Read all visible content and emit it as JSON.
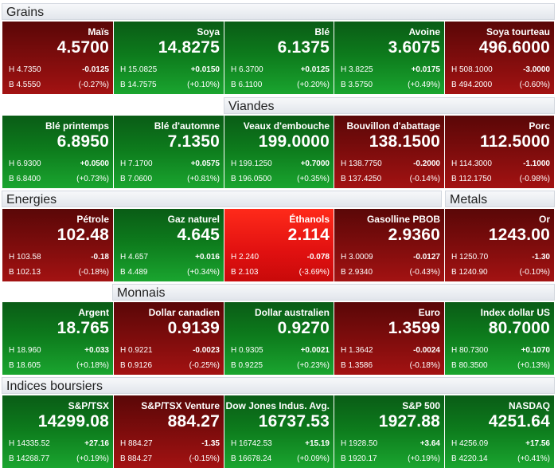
{
  "sections": {
    "grains": "Grains",
    "viandes": "Viandes",
    "energies": "Energies",
    "metals": "Metals",
    "monnais": "Monnais",
    "indices": "Indices boursiers"
  },
  "rows": [
    [
      {
        "name": "Maïs",
        "price": "4.5700",
        "high": "H 4.7350",
        "low": "B 4.5550",
        "change": "-0.0125",
        "pct": "(-0.27%)",
        "dir": "down"
      },
      {
        "name": "Soya",
        "price": "14.8275",
        "high": "H 15.0825",
        "low": "B 14.7575",
        "change": "+0.0150",
        "pct": "(+0.10%)",
        "dir": "up"
      },
      {
        "name": "Blé",
        "price": "6.1375",
        "high": "H 6.3700",
        "low": "B 6.1100",
        "change": "+0.0125",
        "pct": "(+0.20%)",
        "dir": "up"
      },
      {
        "name": "Avoine",
        "price": "3.6075",
        "high": "H 3.8225",
        "low": "B 3.5750",
        "change": "+0.0175",
        "pct": "(+0.49%)",
        "dir": "up"
      },
      {
        "name": "Soya tourteau",
        "price": "496.6000",
        "high": "H 508.1000",
        "low": "B 494.2000",
        "change": "-3.0000",
        "pct": "(-0.60%)",
        "dir": "down"
      }
    ],
    [
      {
        "name": "Blé printemps",
        "price": "6.8950",
        "high": "H 6.9300",
        "low": "B 6.8400",
        "change": "+0.0500",
        "pct": "(+0.73%)",
        "dir": "up"
      },
      {
        "name": "Blé d'automne",
        "price": "7.1350",
        "high": "H 7.1700",
        "low": "B 7.0600",
        "change": "+0.0575",
        "pct": "(+0.81%)",
        "dir": "up"
      },
      {
        "name": "Veaux d'embouche",
        "price": "199.0000",
        "high": "H 199.1250",
        "low": "B 196.0500",
        "change": "+0.7000",
        "pct": "(+0.35%)",
        "dir": "up"
      },
      {
        "name": "Bouvillon d'abattage",
        "price": "138.1500",
        "high": "H 138.7750",
        "low": "B 137.4250",
        "change": "-0.2000",
        "pct": "(-0.14%)",
        "dir": "down"
      },
      {
        "name": "Porc",
        "price": "112.5000",
        "high": "H 114.3000",
        "low": "B 112.1750",
        "change": "-1.1000",
        "pct": "(-0.98%)",
        "dir": "down"
      }
    ],
    [
      {
        "name": "Pétrole",
        "price": "102.48",
        "high": "H 103.58",
        "low": "B 102.13",
        "change": "-0.18",
        "pct": "(-0.18%)",
        "dir": "down"
      },
      {
        "name": "Gaz naturel",
        "price": "4.645",
        "high": "H 4.657",
        "low": "B 4.489",
        "change": "+0.016",
        "pct": "(+0.34%)",
        "dir": "up"
      },
      {
        "name": "Éthanols",
        "price": "2.114",
        "high": "H 2.240",
        "low": "B 2.103",
        "change": "-0.078",
        "pct": "(-3.69%)",
        "dir": "strong-down"
      },
      {
        "name": "Gasolline PBOB",
        "price": "2.9360",
        "high": "H 3.0009",
        "low": "B 2.9340",
        "change": "-0.0127",
        "pct": "(-0.43%)",
        "dir": "down"
      },
      {
        "name": "Or",
        "price": "1243.00",
        "high": "H 1250.70",
        "low": "B 1240.90",
        "change": "-1.30",
        "pct": "(-0.10%)",
        "dir": "down"
      }
    ],
    [
      {
        "name": "Argent",
        "price": "18.765",
        "high": "H 18.960",
        "low": "B 18.605",
        "change": "+0.033",
        "pct": "(+0.18%)",
        "dir": "up"
      },
      {
        "name": "Dollar canadien",
        "price": "0.9139",
        "high": "H 0.9221",
        "low": "B 0.9126",
        "change": "-0.0023",
        "pct": "(-0.25%)",
        "dir": "down"
      },
      {
        "name": "Dollar australien",
        "price": "0.9270",
        "high": "H 0.9305",
        "low": "B 0.9225",
        "change": "+0.0021",
        "pct": "(+0.23%)",
        "dir": "up"
      },
      {
        "name": "Euro",
        "price": "1.3599",
        "high": "H 1.3642",
        "low": "B 1.3586",
        "change": "-0.0024",
        "pct": "(-0.18%)",
        "dir": "down"
      },
      {
        "name": "Index dollar US",
        "price": "80.7000",
        "high": "H 80.7300",
        "low": "B 80.3500",
        "change": "+0.1070",
        "pct": "(+0.13%)",
        "dir": "up"
      }
    ],
    [
      {
        "name": "S&P/TSX",
        "price": "14299.08",
        "high": "H 14335.52",
        "low": "B 14268.77",
        "change": "+27.16",
        "pct": "(+0.19%)",
        "dir": "up"
      },
      {
        "name": "S&P/TSX Venture",
        "price": "884.27",
        "high": "H 884.27",
        "low": "B 884.27",
        "change": "-1.35",
        "pct": "(-0.15%)",
        "dir": "down"
      },
      {
        "name": "Dow Jones Indus. Avg.",
        "price": "16737.53",
        "high": "H 16742.53",
        "low": "B 16678.24",
        "change": "+15.19",
        "pct": "(+0.09%)",
        "dir": "up"
      },
      {
        "name": "S&P 500",
        "price": "1927.88",
        "high": "H 1928.50",
        "low": "B 1920.17",
        "change": "+3.64",
        "pct": "(+0.19%)",
        "dir": "up"
      },
      {
        "name": "NASDAQ",
        "price": "4251.64",
        "high": "H 4256.09",
        "low": "B 4220.14",
        "change": "+17.56",
        "pct": "(+0.41%)",
        "dir": "up"
      }
    ]
  ]
}
